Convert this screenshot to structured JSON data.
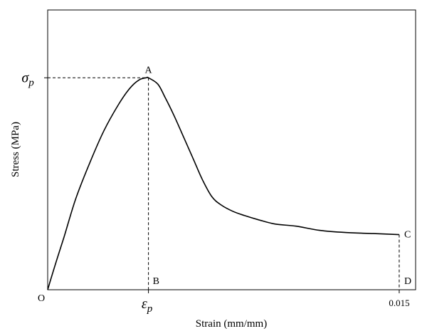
{
  "chart_data": {
    "type": "line",
    "title": "",
    "xlabel": "Strain (mm/mm)",
    "ylabel": "Stress (MPa)",
    "grid": false,
    "legend": "none",
    "xlim": [
      0,
      0.0157
    ],
    "ylim": [
      0,
      1.32
    ],
    "x_ticks": [
      {
        "value": 0.0043,
        "label": "ε",
        "sub": "p"
      },
      {
        "value": 0.015,
        "label": "0.015"
      }
    ],
    "y_ticks": [
      {
        "value": 1.0,
        "label": "σ",
        "sub": "p"
      }
    ],
    "series": [
      {
        "x": [
          0,
          0.0003,
          0.0007,
          0.0012,
          0.0018,
          0.0024,
          0.003,
          0.0035,
          0.0039,
          0.0042,
          0.0043,
          0.0047,
          0.005,
          0.0054,
          0.0058,
          0.0062,
          0.0066,
          0.007,
          0.0074,
          0.0079,
          0.0084,
          0.009,
          0.0097,
          0.0106,
          0.0116,
          0.0127,
          0.0139,
          0.015
        ],
        "y": [
          0,
          0.11,
          0.25,
          0.43,
          0.6,
          0.75,
          0.87,
          0.95,
          0.99,
          1.0,
          1.0,
          0.97,
          0.91,
          0.82,
          0.72,
          0.62,
          0.52,
          0.44,
          0.4,
          0.37,
          0.35,
          0.33,
          0.31,
          0.3,
          0.28,
          0.27,
          0.265,
          0.26
        ]
      }
    ],
    "points": [
      {
        "label": "O",
        "x": 0,
        "y": 0
      },
      {
        "label": "A",
        "x": 0.0043,
        "y": 1.0
      },
      {
        "label": "B",
        "x": 0.0043,
        "y": 0
      },
      {
        "label": "C",
        "x": 0.015,
        "y": 0.26
      },
      {
        "label": "D",
        "x": 0.015,
        "y": 0
      }
    ]
  }
}
